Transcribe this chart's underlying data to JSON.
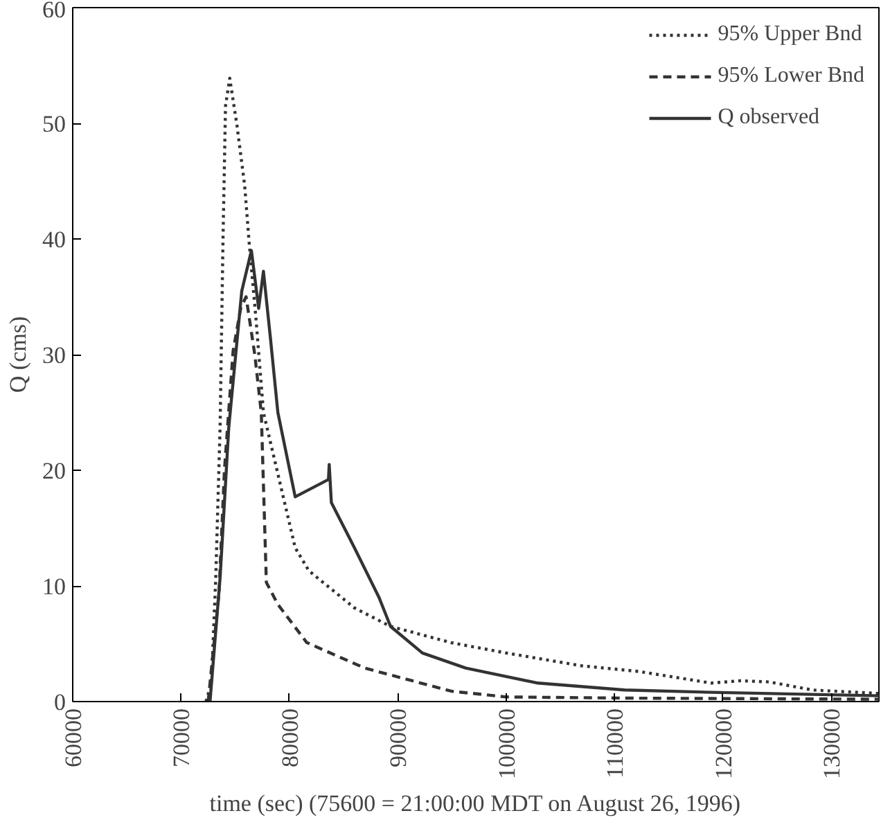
{
  "chart_data": {
    "type": "line",
    "xlabel": "time (sec) (75600 = 21:00:00 MDT on August 26, 1996)",
    "ylabel": "Q (cms)",
    "xlim": [
      60000,
      134400
    ],
    "ylim": [
      0,
      60
    ],
    "xticks": [
      60000,
      70000,
      80000,
      90000,
      100000,
      110000,
      120000,
      130000
    ],
    "yticks": [
      0,
      10,
      20,
      30,
      40,
      50,
      60
    ],
    "grid": false,
    "legend": "top right",
    "marker": "none",
    "series": [
      {
        "name": "95% Upper Bnd",
        "color": "#333333",
        "line_style": "dotted",
        "x": [
          72300,
          72800,
          73200,
          73600,
          73870,
          74100,
          74490,
          75160,
          75870,
          76270,
          76930,
          77600,
          80530,
          81800,
          86000,
          89330,
          94900,
          100000,
          106930,
          112270,
          118930,
          121600,
          124270,
          128270,
          134400
        ],
        "values": [
          0,
          1.6,
          10.7,
          23.7,
          40,
          51.5,
          53.9,
          49.8,
          44.6,
          39.8,
          32.9,
          25,
          13.3,
          11.3,
          8.1,
          6.5,
          5.1,
          4.2,
          3.1,
          2.6,
          1.6,
          1.8,
          1.7,
          1.0,
          0.7
        ]
      },
      {
        "name": "95% Lower Bnd",
        "color": "#333333",
        "line_style": "dashed",
        "x": [
          72500,
          73500,
          74000,
          74800,
          75500,
          76000,
          76800,
          77400,
          77870,
          78930,
          81600,
          86930,
          94930,
          100000,
          110930,
          134400
        ],
        "values": [
          0,
          9.4,
          20,
          30.3,
          34,
          35,
          30,
          25,
          10.3,
          8.4,
          5.1,
          2.9,
          0.9,
          0.4,
          0.3,
          0.2
        ]
      },
      {
        "name": "Q observed",
        "color": "#333333",
        "line_style": "solid",
        "x": [
          72670,
          73600,
          74400,
          75600,
          76490,
          77160,
          77600,
          78270,
          78930,
          80530,
          83600,
          83670,
          83870,
          86000,
          88270,
          89330,
          92270,
          96270,
          102930,
          110930,
          118930,
          134400
        ],
        "values": [
          0,
          10.7,
          23.7,
          35.5,
          39,
          34,
          37.2,
          31.2,
          25,
          17.7,
          19.2,
          20.5,
          17.2,
          13.3,
          9,
          6.5,
          4.2,
          2.9,
          1.6,
          1.0,
          0.8,
          0.5
        ]
      }
    ]
  }
}
